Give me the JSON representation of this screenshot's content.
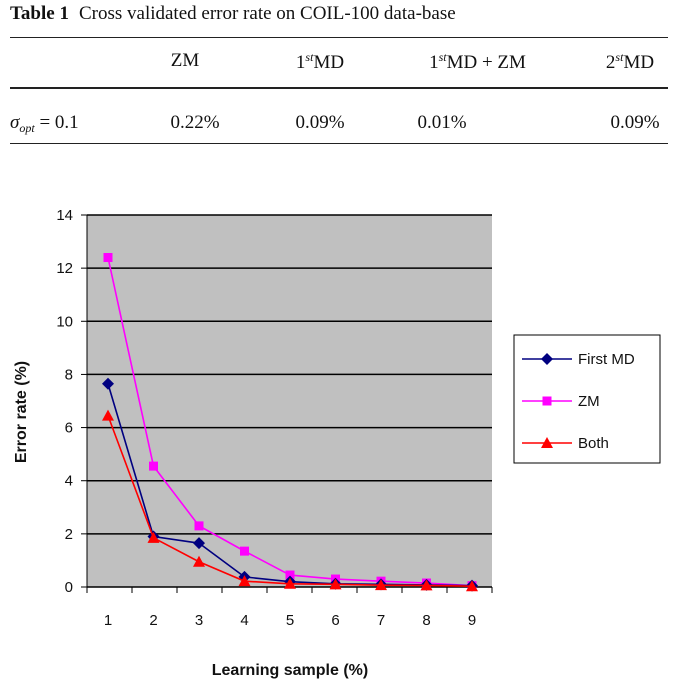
{
  "table": {
    "label": "Table 1",
    "caption": "Cross validated error rate on COIL-100 data-base",
    "headers": [
      {
        "base": "ZM",
        "sup": "",
        "rest": ""
      },
      {
        "base": "1",
        "sup": "st",
        "rest": "MD"
      },
      {
        "base": "1",
        "sup": "st",
        "rest": "MD + ZM"
      },
      {
        "base": "2",
        "sup": "st",
        "rest": "MD"
      }
    ],
    "row": {
      "symbol": "σ",
      "subscript": "opt",
      "equals": " = 0.1",
      "values": [
        "0.22%",
        "0.09%",
        "0.01%",
        "0.09%"
      ]
    }
  },
  "chart_data": {
    "type": "line",
    "xlabel": "Learning sample (%)",
    "ylabel": "Error rate (%)",
    "categories": [
      "1",
      "2",
      "3",
      "4",
      "5",
      "6",
      "7",
      "8",
      "9"
    ],
    "ylim": [
      0,
      14
    ],
    "yticks": [
      0,
      2,
      4,
      6,
      8,
      10,
      12,
      14
    ],
    "grid": true,
    "legend_position": "right",
    "plot_background": "#c0c0c0",
    "series": [
      {
        "name": "First MD",
        "marker": "diamond",
        "color": "#000080",
        "values": [
          7.65,
          1.9,
          1.65,
          0.38,
          0.2,
          0.12,
          0.1,
          0.08,
          0.05
        ]
      },
      {
        "name": "ZM",
        "marker": "square",
        "color": "#ff00ff",
        "values": [
          12.4,
          4.55,
          2.3,
          1.35,
          0.45,
          0.3,
          0.22,
          0.15,
          0.05
        ]
      },
      {
        "name": "Both",
        "marker": "triangle",
        "color": "#ff0000",
        "values": [
          6.45,
          1.85,
          0.95,
          0.22,
          0.12,
          0.1,
          0.07,
          0.06,
          0.03
        ]
      }
    ]
  }
}
